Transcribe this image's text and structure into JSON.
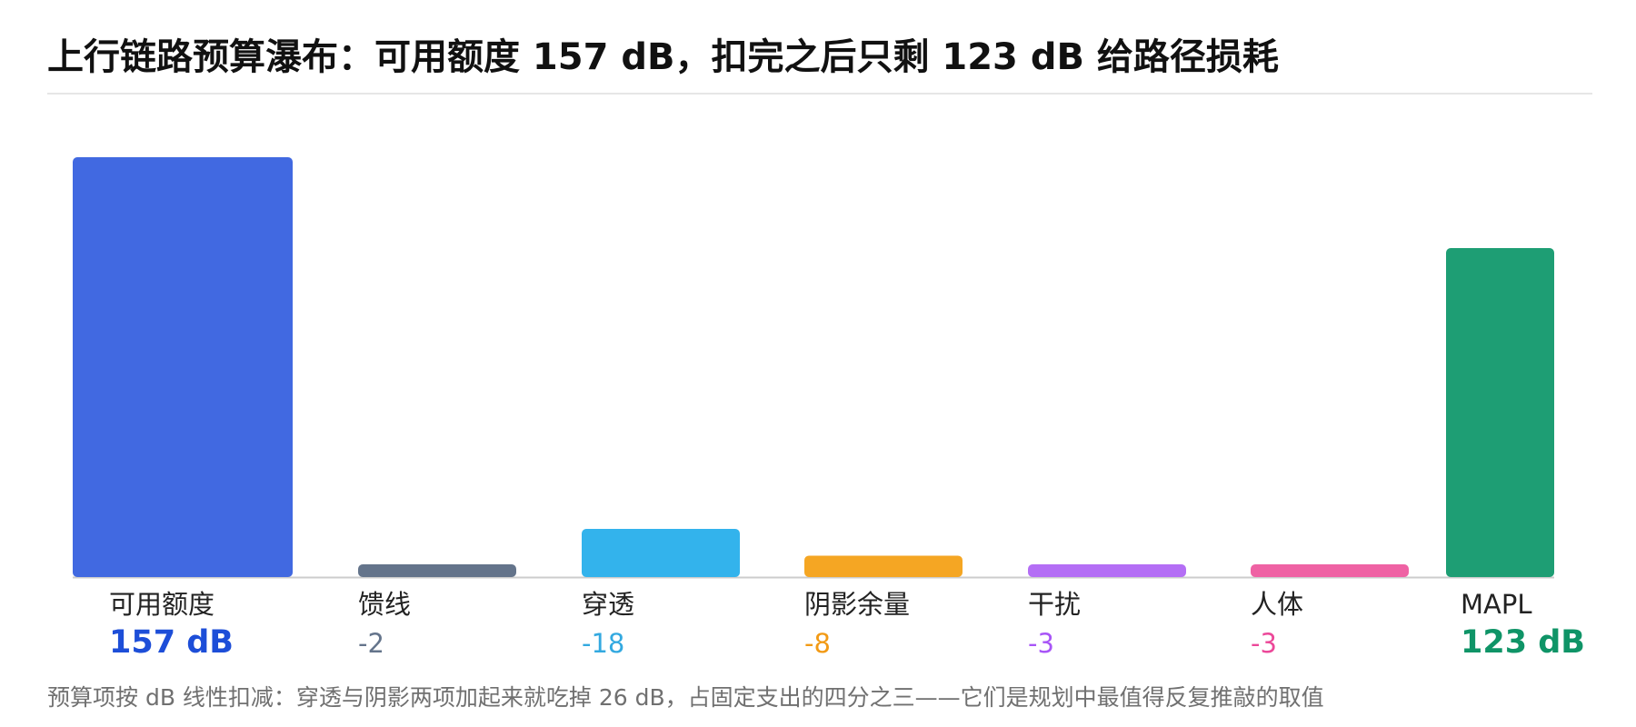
{
  "title": "上行链路预算瀑布：可用额度 157 dB，扣完之后只剩 123 dB 给路径损耗",
  "footnote": "预算项按 dB 线性扣减：穿透与阴影两项加起来就吃掉 26 dB，占固定支出的四分之三——它们是规划中最值得反复推敲的取值",
  "chart_data": {
    "type": "bar",
    "variant": "waterfall",
    "title": "上行链路预算瀑布：可用额度 157 dB，扣完之后只剩 123 dB 给路径损耗",
    "xlabel": "",
    "ylabel": "",
    "ylim": [
      0,
      157
    ],
    "grid": false,
    "categories": [
      "可用额度",
      "馈线",
      "穿透",
      "阴影余量",
      "干扰",
      "人体",
      "MAPL"
    ],
    "values": [
      157,
      -2,
      -18,
      -8,
      -3,
      -3,
      123
    ],
    "value_labels": [
      "157 dB",
      "-2",
      "-18",
      "-8",
      "-3",
      "-3",
      "123 dB"
    ],
    "kinds": [
      "total",
      "delta",
      "delta",
      "delta",
      "delta",
      "delta",
      "total"
    ],
    "colors": [
      "#4169e1",
      "#64748b",
      "#33b3ec",
      "#f5a623",
      "#b46ef5",
      "#ef62a4",
      "#1e9e74"
    ],
    "value_label_colors": [
      "#1d4ed8",
      "#64748b",
      "#33a9e0",
      "#f29a15",
      "#a855f7",
      "#ec4899",
      "#0f9467"
    ],
    "axis_color": "#cccccc"
  }
}
